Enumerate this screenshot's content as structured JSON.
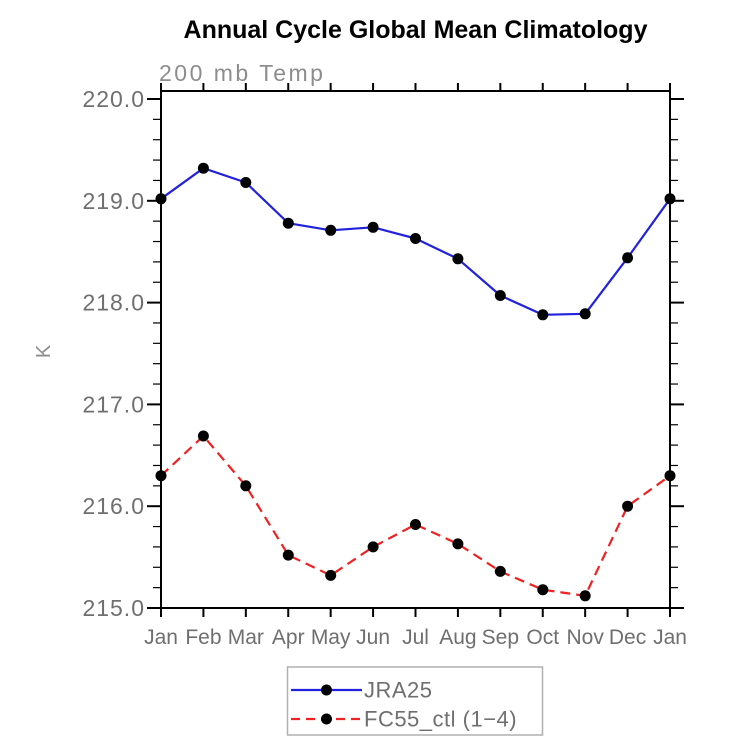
{
  "title": "Annual Cycle Global Mean Climatology",
  "subtitle": "200 mb Temp",
  "colors": {
    "title": "#000000",
    "axis": "#000000",
    "tick_label": "#6f6f6f",
    "subtitle": "#8d8d8d",
    "marker": "#000000",
    "jra25_line": "#2222dd",
    "fc55_line": "#ee2222",
    "legend_border": "#b0b0b0",
    "legend_text": "#6f6f6f"
  },
  "chart_data": {
    "type": "line",
    "title": "Annual Cycle Global Mean Climatology",
    "subtitle": "200 mb Temp",
    "xlabel": "",
    "ylabel": "K",
    "categories": [
      "Jan",
      "Feb",
      "Mar",
      "Apr",
      "May",
      "Jun",
      "Jul",
      "Aug",
      "Sep",
      "Oct",
      "Nov",
      "Dec",
      "Jan"
    ],
    "series": [
      {
        "name": "JRA25",
        "style": "solid",
        "color": "#2222dd",
        "marker": "filled-circle",
        "values": [
          219.02,
          219.32,
          219.18,
          218.78,
          218.71,
          218.74,
          218.63,
          218.43,
          218.07,
          217.88,
          217.89,
          218.44,
          219.02
        ]
      },
      {
        "name": "FC55_ctl (1−4)",
        "style": "dashed",
        "color": "#ee2222",
        "marker": "filled-circle",
        "values": [
          216.3,
          216.69,
          216.2,
          215.52,
          215.32,
          215.6,
          215.82,
          215.63,
          215.36,
          215.18,
          215.12,
          216.0,
          216.3
        ]
      }
    ],
    "ylim": [
      215.0,
      220.0
    ],
    "yticks": [
      215.0,
      216.0,
      217.0,
      218.0,
      219.0,
      220.0
    ],
    "ytick_labels": [
      "215.0",
      "216.0",
      "217.0",
      "218.0",
      "219.0",
      "220.0"
    ],
    "minor_tick_interval": 0.2,
    "grid": false,
    "legend_position": "bottom-center"
  }
}
